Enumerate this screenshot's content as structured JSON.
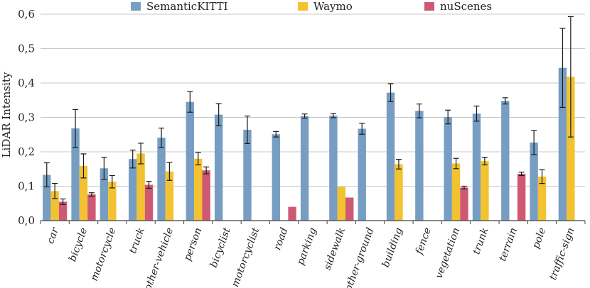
{
  "chart_data": {
    "type": "bar",
    "ylabel": "LiDAR Intensity",
    "xlabel": "",
    "ylim": [
      0,
      0.6
    ],
    "yticks": [
      "0,0",
      "0,1",
      "0,2",
      "0,3",
      "0,4",
      "0,5",
      "0,6"
    ],
    "grid": true,
    "legend_position": "top-center",
    "categories": [
      "car",
      "bicycle",
      "motorcycle",
      "truck",
      "other-vehicle",
      "person",
      "bicyclist",
      "motorcyclist",
      "road",
      "parking",
      "sidewalk",
      "other-ground",
      "building",
      "fence",
      "vegetation",
      "trunk",
      "terrain",
      "pole",
      "traffic-sign"
    ],
    "series": [
      {
        "name": "SemanticKITTI",
        "color": "#779ec2",
        "values": [
          0.133,
          0.268,
          0.152,
          0.179,
          0.241,
          0.345,
          0.308,
          0.264,
          0.251,
          0.304,
          0.305,
          0.267,
          0.372,
          0.319,
          0.301,
          0.311,
          0.348,
          0.227,
          0.444
        ],
        "errors": [
          0.035,
          0.055,
          0.032,
          0.026,
          0.028,
          0.03,
          0.032,
          0.04,
          0.008,
          0.006,
          0.006,
          0.016,
          0.026,
          0.02,
          0.02,
          0.022,
          0.009,
          0.035,
          0.115
        ]
      },
      {
        "name": "Waymo",
        "color": "#f2c231",
        "values": [
          0.086,
          0.159,
          0.113,
          0.195,
          0.143,
          0.18,
          null,
          null,
          null,
          null,
          0.098,
          null,
          0.164,
          null,
          0.166,
          0.173,
          null,
          0.128,
          0.418
        ],
        "errors": [
          0.022,
          0.035,
          0.018,
          0.03,
          0.026,
          0.018,
          null,
          null,
          null,
          null,
          0.0,
          null,
          0.014,
          null,
          0.015,
          0.011,
          null,
          0.02,
          0.175
        ]
      },
      {
        "name": "nuScenes",
        "color": "#cf5872",
        "values": [
          0.055,
          0.076,
          null,
          0.104,
          null,
          0.146,
          null,
          null,
          0.04,
          null,
          0.067,
          null,
          null,
          null,
          0.096,
          null,
          0.136,
          null,
          null
        ],
        "errors": [
          0.008,
          0.005,
          null,
          0.01,
          null,
          0.01,
          null,
          null,
          0.0,
          null,
          0.0,
          null,
          null,
          null,
          0.004,
          null,
          0.005,
          null,
          null
        ]
      }
    ]
  }
}
